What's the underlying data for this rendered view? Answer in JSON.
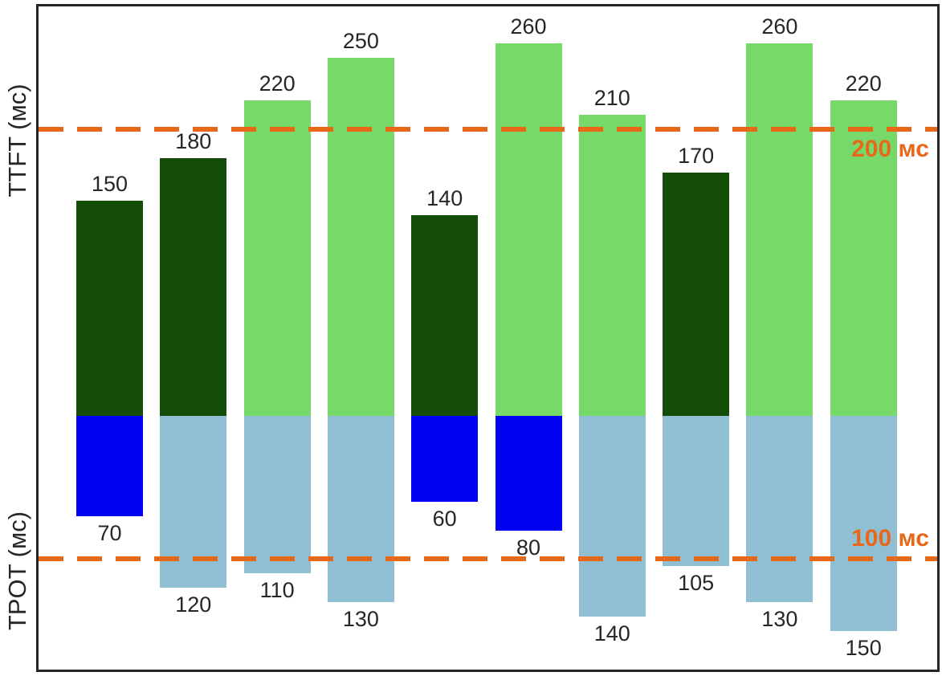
{
  "chart_data": {
    "type": "bar",
    "subtype": "diverging-vertical",
    "title": "",
    "categories": [
      "1",
      "2",
      "3",
      "4",
      "5",
      "6",
      "7",
      "8",
      "9",
      "10"
    ],
    "x_tick_labels_visible": false,
    "grid": false,
    "legend": false,
    "series": [
      {
        "name": "TTFT",
        "axis_label": "TTFT (мс)",
        "direction": "up",
        "unit": "мс",
        "values": [
          150,
          180,
          220,
          250,
          140,
          260,
          210,
          170,
          260,
          220
        ]
      },
      {
        "name": "TPOT",
        "axis_label": "TPOT (мс)",
        "direction": "down",
        "unit": "мс",
        "values": [
          70,
          120,
          110,
          130,
          60,
          80,
          140,
          105,
          130,
          150
        ]
      }
    ],
    "thresholds": {
      "ttft": {
        "value": 200,
        "label": "200 мс"
      },
      "tpot": {
        "value": 100,
        "label": "100 мс"
      }
    },
    "color_encoding": "bars below their threshold are dark green (TTFT) or blue (TPOT); bars above are light green / light blue"
  },
  "labels": {
    "ylabel_top": "TTFT (мс)",
    "ylabel_bottom": "TPOT (мс)",
    "threshold_top": "200 мс",
    "threshold_bottom": "100 мс"
  },
  "colors": {
    "ttft_below_threshold": "#134d07",
    "ttft_above_threshold": "#77d96a",
    "tpot_below_threshold": "#0101f3",
    "tpot_above_threshold": "#90bed3",
    "threshold_line": "#e8681a",
    "text": "#262626",
    "frame": "#262626",
    "background": "#ffffff"
  }
}
